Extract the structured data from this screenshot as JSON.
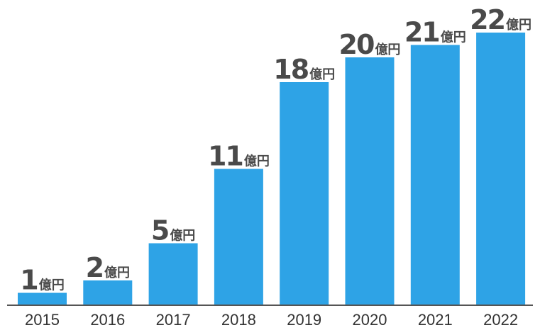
{
  "chart_data": {
    "type": "bar",
    "title": "",
    "xlabel": "",
    "ylabel": "",
    "categories": [
      "2015",
      "2016",
      "2017",
      "2018",
      "2019",
      "2020",
      "2021",
      "2022"
    ],
    "values": [
      1,
      2,
      5,
      11,
      18,
      20,
      21,
      22
    ],
    "value_unit": "億円",
    "ylim": [
      0,
      22
    ],
    "grid": false,
    "colors": {
      "bar": "#2ea3e6",
      "axis": "#555555",
      "value_text": "#4a4a4a",
      "tick_text": "#333333"
    }
  }
}
